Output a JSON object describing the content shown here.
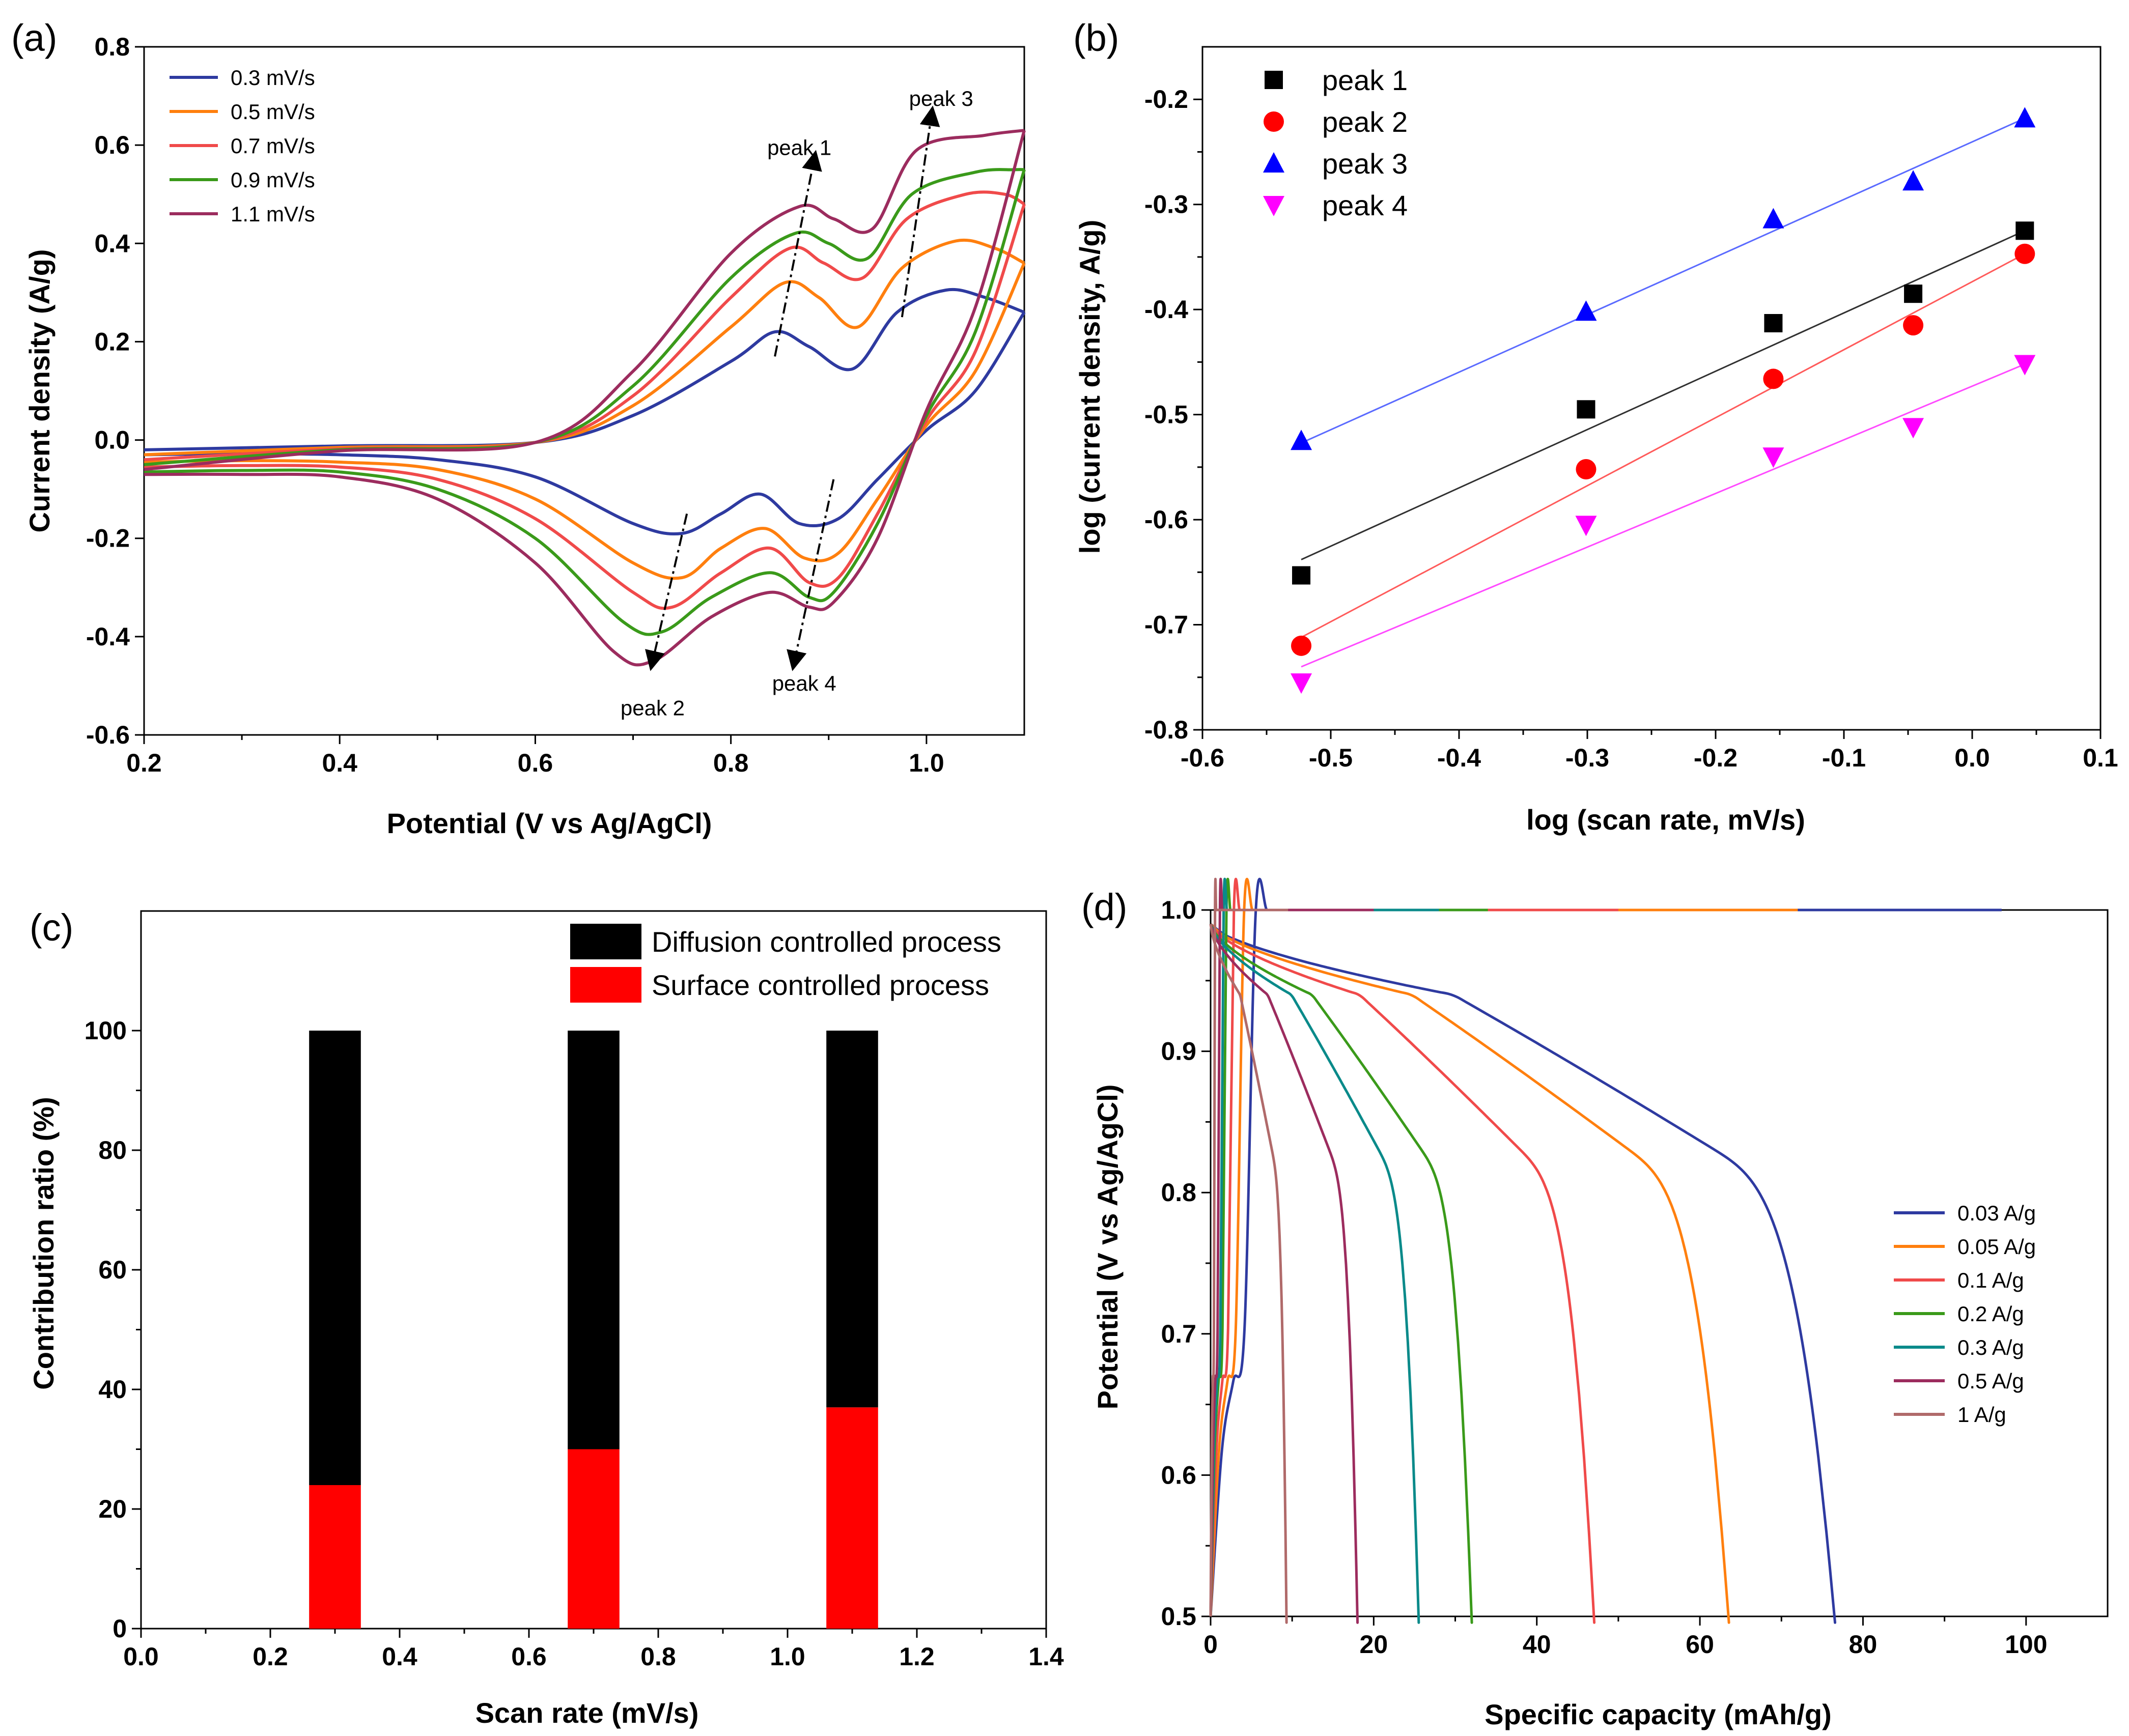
{
  "chart_data": [
    {
      "id": "a",
      "type": "line",
      "panel_label": "(a)",
      "xlabel": "Potential (V vs Ag/AgCl)",
      "ylabel": "Current density (A/g)",
      "xlim": [
        0.2,
        1.1
      ],
      "ylim": [
        -0.6,
        0.8
      ],
      "xticks": [
        0.2,
        0.4,
        0.6,
        0.8,
        1.0
      ],
      "yticks": [
        -0.6,
        -0.4,
        -0.2,
        0.0,
        0.2,
        0.4,
        0.6,
        0.8
      ],
      "xtick_labels": [
        "0.2",
        "0.4",
        "0.6",
        "0.8",
        "1.0"
      ],
      "ytick_labels": [
        "-0.6",
        "-0.4",
        "-0.2",
        "0.0",
        "0.2",
        "0.4",
        "0.6",
        "0.8"
      ],
      "legend_position": "top-left",
      "series": [
        {
          "name": "0.3 mV/s",
          "color": "#2e3aa0",
          "anodic": {
            "x": [
              0.2,
              0.4,
              0.6,
              0.7,
              0.8,
              0.845,
              0.88,
              0.925,
              0.97,
              1.02,
              1.06,
              1.1
            ],
            "y": [
              -0.02,
              -0.012,
              -0.005,
              0.05,
              0.16,
              0.22,
              0.19,
              0.145,
              0.26,
              0.305,
              0.29,
              0.26
            ]
          },
          "cathodic": {
            "x": [
              1.1,
              1.05,
              1.0,
              0.95,
              0.91,
              0.87,
              0.83,
              0.79,
              0.75,
              0.7,
              0.6,
              0.5,
              0.4,
              0.3,
              0.2
            ],
            "y": [
              0.26,
              0.1,
              0.02,
              -0.08,
              -0.16,
              -0.17,
              -0.11,
              -0.15,
              -0.19,
              -0.17,
              -0.075,
              -0.04,
              -0.03,
              -0.028,
              -0.03
            ]
          }
        },
        {
          "name": "0.5 mV/s",
          "color": "#ff7f0e",
          "anodic": {
            "x": [
              0.2,
              0.4,
              0.6,
              0.7,
              0.8,
              0.855,
              0.89,
              0.93,
              0.975,
              1.03,
              1.07,
              1.1
            ],
            "y": [
              -0.03,
              -0.015,
              -0.005,
              0.07,
              0.23,
              0.32,
              0.29,
              0.23,
              0.35,
              0.405,
              0.39,
              0.36
            ]
          },
          "cathodic": {
            "x": [
              1.1,
              1.05,
              1.0,
              0.95,
              0.91,
              0.875,
              0.835,
              0.79,
              0.75,
              0.7,
              0.6,
              0.5,
              0.4,
              0.3,
              0.2
            ],
            "y": [
              0.36,
              0.14,
              0.03,
              -0.12,
              -0.23,
              -0.24,
              -0.18,
              -0.22,
              -0.28,
              -0.25,
              -0.12,
              -0.06,
              -0.045,
              -0.042,
              -0.045
            ]
          }
        },
        {
          "name": "0.7 mV/s",
          "color": "#f04a4a",
          "anodic": {
            "x": [
              0.2,
              0.4,
              0.6,
              0.7,
              0.8,
              0.86,
              0.895,
              0.935,
              0.98,
              1.04,
              1.08,
              1.1
            ],
            "y": [
              -0.04,
              -0.018,
              -0.005,
              0.09,
              0.29,
              0.39,
              0.36,
              0.33,
              0.45,
              0.5,
              0.5,
              0.48
            ]
          },
          "cathodic": {
            "x": [
              1.1,
              1.05,
              1.0,
              0.95,
              0.91,
              0.88,
              0.84,
              0.79,
              0.74,
              0.7,
              0.6,
              0.5,
              0.4,
              0.3,
              0.2
            ],
            "y": [
              0.48,
              0.18,
              0.04,
              -0.15,
              -0.28,
              -0.29,
              -0.22,
              -0.27,
              -0.34,
              -0.31,
              -0.16,
              -0.08,
              -0.055,
              -0.052,
              -0.055
            ]
          }
        },
        {
          "name": "0.9 mV/s",
          "color": "#3a9a1a",
          "anodic": {
            "x": [
              0.2,
              0.4,
              0.6,
              0.7,
              0.8,
              0.865,
              0.9,
              0.94,
              0.985,
              1.05,
              1.09,
              1.1
            ],
            "y": [
              -0.05,
              -0.02,
              -0.005,
              0.11,
              0.33,
              0.42,
              0.4,
              0.37,
              0.5,
              0.545,
              0.55,
              0.55
            ]
          },
          "cathodic": {
            "x": [
              1.1,
              1.05,
              1.0,
              0.95,
              0.905,
              0.88,
              0.84,
              0.78,
              0.73,
              0.69,
              0.6,
              0.5,
              0.4,
              0.3,
              0.2
            ],
            "y": [
              0.55,
              0.22,
              0.05,
              -0.17,
              -0.31,
              -0.32,
              -0.27,
              -0.32,
              -0.39,
              -0.37,
              -0.2,
              -0.1,
              -0.065,
              -0.062,
              -0.065
            ]
          }
        },
        {
          "name": "1.1 mV/s",
          "color": "#9c2c5e",
          "anodic": {
            "x": [
              0.2,
              0.4,
              0.6,
              0.7,
              0.8,
              0.87,
              0.905,
              0.945,
              0.99,
              1.06,
              1.1
            ],
            "y": [
              -0.06,
              -0.022,
              -0.005,
              0.14,
              0.38,
              0.475,
              0.45,
              0.43,
              0.59,
              0.62,
              0.63
            ]
          },
          "cathodic": {
            "x": [
              1.1,
              1.05,
              1.0,
              0.95,
              0.905,
              0.88,
              0.84,
              0.78,
              0.72,
              0.68,
              0.6,
              0.5,
              0.4,
              0.3,
              0.2
            ],
            "y": [
              0.63,
              0.27,
              0.06,
              -0.2,
              -0.33,
              -0.34,
              -0.31,
              -0.36,
              -0.45,
              -0.43,
              -0.25,
              -0.12,
              -0.075,
              -0.07,
              -0.07
            ]
          }
        }
      ],
      "annotations": [
        {
          "text": "peak 1",
          "from": [
            0.845,
            0.17
          ],
          "to": [
            0.885,
            0.57
          ],
          "label_at": [
            0.87,
            0.58
          ]
        },
        {
          "text": "peak 3",
          "from": [
            0.975,
            0.25
          ],
          "to": [
            1.005,
            0.66
          ],
          "label_at": [
            1.015,
            0.68
          ]
        },
        {
          "text": "peak 2",
          "from": [
            0.755,
            -0.15
          ],
          "to": [
            0.72,
            -0.45
          ],
          "label_at": [
            0.72,
            -0.56
          ]
        },
        {
          "text": "peak 4",
          "from": [
            0.905,
            -0.08
          ],
          "to": [
            0.865,
            -0.45
          ],
          "label_at": [
            0.875,
            -0.51
          ]
        }
      ]
    },
    {
      "id": "b",
      "type": "scatter",
      "panel_label": "(b)",
      "xlabel": "log (scan rate, mV/s)",
      "ylabel": "log (current density, A/g)",
      "xlim": [
        -0.6,
        0.1
      ],
      "ylim": [
        -0.8,
        -0.15
      ],
      "xticks": [
        -0.6,
        -0.5,
        -0.4,
        -0.3,
        -0.2,
        -0.1,
        0.0,
        0.1
      ],
      "yticks": [
        -0.8,
        -0.7,
        -0.6,
        -0.5,
        -0.4,
        -0.3,
        -0.2
      ],
      "xtick_labels": [
        "-0.6",
        "-0.5",
        "-0.4",
        "-0.3",
        "-0.2",
        "-0.1",
        "0.0",
        "0.1"
      ],
      "ytick_labels": [
        "-0.8",
        "-0.7",
        "-0.6",
        "-0.5",
        "-0.4",
        "-0.3",
        "-0.2"
      ],
      "x": [
        -0.523,
        -0.301,
        -0.155,
        -0.046,
        0.041
      ],
      "legend_position": "top-left",
      "series": [
        {
          "name": "peak 1",
          "color": "#000000",
          "marker": "square",
          "fit_color": "#303030",
          "values": [
            -0.653,
            -0.495,
            -0.413,
            -0.385,
            -0.325
          ],
          "fit": [
            -0.638,
            -0.325
          ]
        },
        {
          "name": "peak 2",
          "color": "#ff0000",
          "marker": "circle",
          "fit_color": "#ff5a5a",
          "values": [
            -0.72,
            -0.552,
            -0.466,
            -0.415,
            -0.347
          ],
          "fit": [
            -0.712,
            -0.347
          ]
        },
        {
          "name": "peak 3",
          "color": "#0000ff",
          "marker": "triangle-up",
          "fit_color": "#5a6aff",
          "values": [
            -0.525,
            -0.402,
            -0.314,
            -0.278,
            -0.218
          ],
          "fit": [
            -0.527,
            -0.218
          ]
        },
        {
          "name": "peak 4",
          "color": "#ff00ff",
          "marker": "triangle-down",
          "fit_color": "#ff4aff",
          "values": [
            -0.755,
            -0.605,
            -0.54,
            -0.512,
            -0.452
          ],
          "fit": [
            -0.74,
            -0.452
          ]
        }
      ]
    },
    {
      "id": "c",
      "type": "bar",
      "panel_label": "(c)",
      "xlabel": "Scan rate (mV/s)",
      "ylabel": "Contribution ratio (%)",
      "xlim": [
        0.0,
        1.4
      ],
      "ylim": [
        0,
        120
      ],
      "xticks": [
        0.0,
        0.2,
        0.4,
        0.6,
        0.8,
        1.0,
        1.2,
        1.4
      ],
      "yticks": [
        0,
        20,
        40,
        60,
        80,
        100
      ],
      "xtick_labels": [
        "0.0",
        "0.2",
        "0.4",
        "0.6",
        "0.8",
        "1.0",
        "1.2",
        "1.4"
      ],
      "ytick_labels": [
        "0",
        "20",
        "40",
        "60",
        "80",
        "100"
      ],
      "x": [
        0.3,
        0.7,
        1.1
      ],
      "bar_width": 0.08,
      "legend_position": "top-right",
      "series": [
        {
          "name": "Diffusion controlled process",
          "color": "#000000",
          "values": [
            76,
            70,
            63
          ]
        },
        {
          "name": "Surface controlled process",
          "color": "#ff0000",
          "values": [
            24,
            30,
            37
          ]
        }
      ]
    },
    {
      "id": "d",
      "type": "line",
      "panel_label": "(d)",
      "xlabel": "Specific capacity (mAh/g)",
      "ylabel": "Potential (V vs Ag/AgCl)",
      "xlim": [
        0,
        110
      ],
      "ylim": [
        0.5,
        1.0
      ],
      "xticks": [
        0,
        20,
        40,
        60,
        80,
        100
      ],
      "yticks": [
        0.5,
        0.6,
        0.7,
        0.8,
        0.9,
        1.0
      ],
      "xtick_labels": [
        "0",
        "20",
        "40",
        "60",
        "80",
        "100"
      ],
      "ytick_labels": [
        "0.5",
        "0.6",
        "0.7",
        "0.8",
        "0.9",
        "1.0"
      ],
      "legend_position": "center-right",
      "series": [
        {
          "name": "0.03 A/g",
          "color": "#2e3aa0",
          "cap": 76.5,
          "cap_charge": 97
        },
        {
          "name": "0.05 A/g",
          "color": "#ff7f0e",
          "cap": 63.5,
          "cap_charge": 72
        },
        {
          "name": "0.1 A/g",
          "color": "#f04a4a",
          "cap": 47,
          "cap_charge": 50
        },
        {
          "name": "0.2 A/g",
          "color": "#3a9a1a",
          "cap": 32,
          "cap_charge": 34
        },
        {
          "name": "0.3 A/g",
          "color": "#0a8a8a",
          "cap": 25.5,
          "cap_charge": 28
        },
        {
          "name": "0.5 A/g",
          "color": "#9c2c5e",
          "cap": 18,
          "cap_charge": 20
        },
        {
          "name": "1 A/g",
          "color": "#b06a6a",
          "cap": 9.3,
          "cap_charge": 9.5
        }
      ]
    }
  ]
}
